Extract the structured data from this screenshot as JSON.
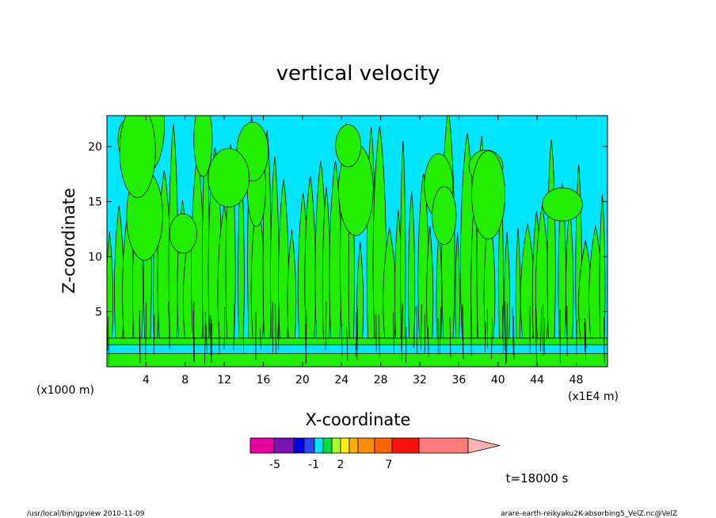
{
  "chart_data": {
    "type": "heatmap",
    "title": "vertical velocity",
    "xlabel": "X-coordinate",
    "ylabel": "Z-coordinate",
    "x_units_left": "(x1000 m)",
    "x_units_right": "(x1E4 m)",
    "xlim": [
      0,
      51.2
    ],
    "ylim": [
      0,
      22.8
    ],
    "x_ticks": [
      "4",
      "8",
      "12",
      "16",
      "20",
      "24",
      "28",
      "32",
      "36",
      "40",
      "44",
      "48"
    ],
    "y_ticks": [
      "5",
      "10",
      "15",
      "20"
    ],
    "colorbar": {
      "tick_labels": [
        "-5",
        "-1",
        "2",
        "7"
      ],
      "colors": [
        "#e8009e",
        "#7a12b4",
        "#0000dc",
        "#2c46f5",
        "#00e6ff",
        "#00e040",
        "#aaff22",
        "#ffee00",
        "#ffb000",
        "#ff8c00",
        "#ff6400",
        "#ff1010",
        "#ff7a7a",
        "#ffb2b2"
      ]
    },
    "field_colors": {
      "positive": "#22ee00",
      "negative": "#00e6ff",
      "contour": "#000000"
    },
    "grid": false
  },
  "annotations": {
    "time": "t=18000 s",
    "footer_left": "/usr/local/bin/gpview  2010-11-09",
    "footer_right": "arare-earth-reikyaku2K-absorbing5_VelZ.nc@VelZ"
  }
}
